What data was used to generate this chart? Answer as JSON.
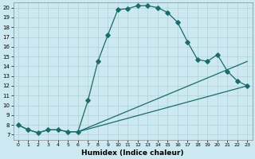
{
  "title": "",
  "xlabel": "Humidex (Indice chaleur)",
  "background_color": "#cce8f0",
  "line_color": "#1a6b6b",
  "grid_color": "#aacccc",
  "xlim": [
    -0.5,
    23.5
  ],
  "ylim": [
    6.5,
    20.5
  ],
  "xticks": [
    0,
    1,
    2,
    3,
    4,
    5,
    6,
    7,
    8,
    9,
    10,
    11,
    12,
    13,
    14,
    15,
    16,
    17,
    18,
    19,
    20,
    21,
    22,
    23
  ],
  "yticks": [
    7,
    8,
    9,
    10,
    11,
    12,
    13,
    14,
    15,
    16,
    17,
    18,
    19,
    20
  ],
  "curve1_x": [
    0,
    1,
    2,
    3,
    4,
    5,
    6,
    7,
    8,
    9,
    10,
    11,
    12,
    13,
    14,
    15,
    16,
    17,
    18,
    19,
    20,
    21,
    22,
    23
  ],
  "curve1_y": [
    8.0,
    7.5,
    7.2,
    7.5,
    7.5,
    7.3,
    7.3,
    10.5,
    14.5,
    17.2,
    19.8,
    19.9,
    20.2,
    20.2,
    20.0,
    19.5,
    18.5,
    16.5,
    14.7,
    14.5,
    15.2,
    13.5,
    12.5,
    12.0
  ],
  "curve2_x": [
    0,
    1,
    2,
    3,
    4,
    5,
    6,
    23
  ],
  "curve2_y": [
    8.0,
    7.5,
    7.2,
    7.5,
    7.5,
    7.3,
    7.3,
    12.0
  ],
  "curve3_x": [
    6,
    23
  ],
  "curve3_y": [
    7.3,
    14.5
  ],
  "tick_fontsize": 5.5,
  "xlabel_fontsize": 6.5
}
